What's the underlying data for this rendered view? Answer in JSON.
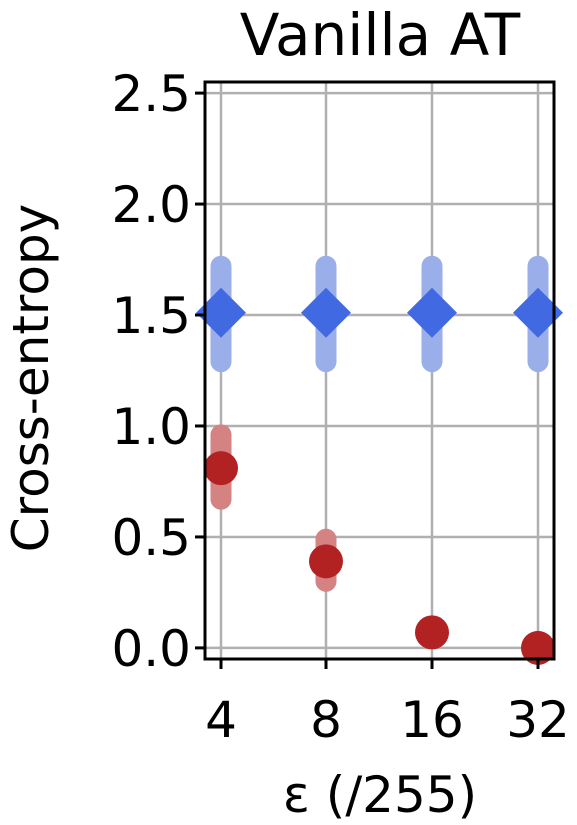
{
  "chart_data": {
    "type": "scatter",
    "title": "Vanilla AT",
    "xlabel": "ε (/255)",
    "ylabel": "Cross-entropy",
    "categories": [
      "4",
      "8",
      "16",
      "32"
    ],
    "yticks": [
      "0.0",
      "0.5",
      "1.0",
      "1.5",
      "2.0",
      "2.5"
    ],
    "ylim": [
      -0.05,
      2.55
    ],
    "grid": true,
    "series": [
      {
        "marker": "diamond",
        "color": "#4169e1",
        "errorbar_color": "#9aaeea",
        "values": [
          1.51,
          1.51,
          1.51,
          1.51
        ],
        "err_low": [
          1.29,
          1.29,
          1.29,
          1.29
        ],
        "err_high": [
          1.72,
          1.72,
          1.72,
          1.72
        ]
      },
      {
        "marker": "circle",
        "color": "#b22222",
        "errorbar_color": "#d48282",
        "values": [
          0.81,
          0.39,
          0.07,
          0.0
        ],
        "err_low": [
          0.67,
          0.3,
          0.05,
          0.0
        ],
        "err_high": [
          0.96,
          0.49,
          0.09,
          0.0
        ]
      }
    ]
  }
}
